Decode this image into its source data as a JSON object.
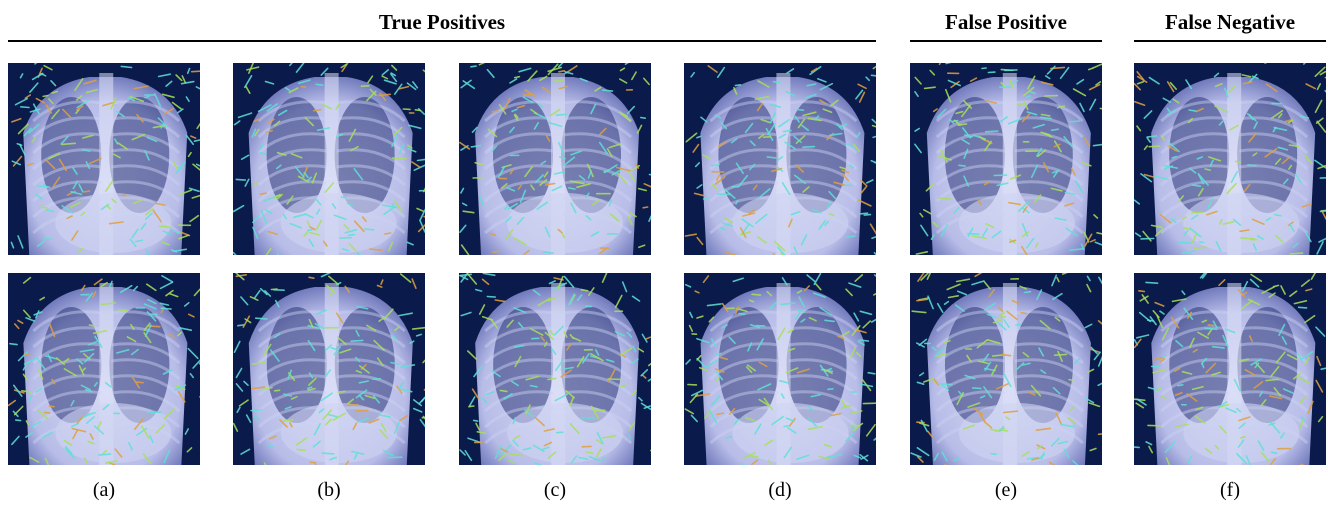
{
  "groups": [
    {
      "title": "True Positives"
    },
    {
      "title": "False Positive"
    },
    {
      "title": "False Negative"
    }
  ],
  "captions": [
    "(a)",
    "(b)",
    "(c)",
    "(d)",
    "(e)",
    "(f)"
  ],
  "colors": {
    "background_dark": "#0a1a4a",
    "body_tint": "#b8bde8",
    "highlight_cyan": "#5fe0d8",
    "highlight_green": "#a8e05a",
    "highlight_orange": "#e0a040"
  }
}
